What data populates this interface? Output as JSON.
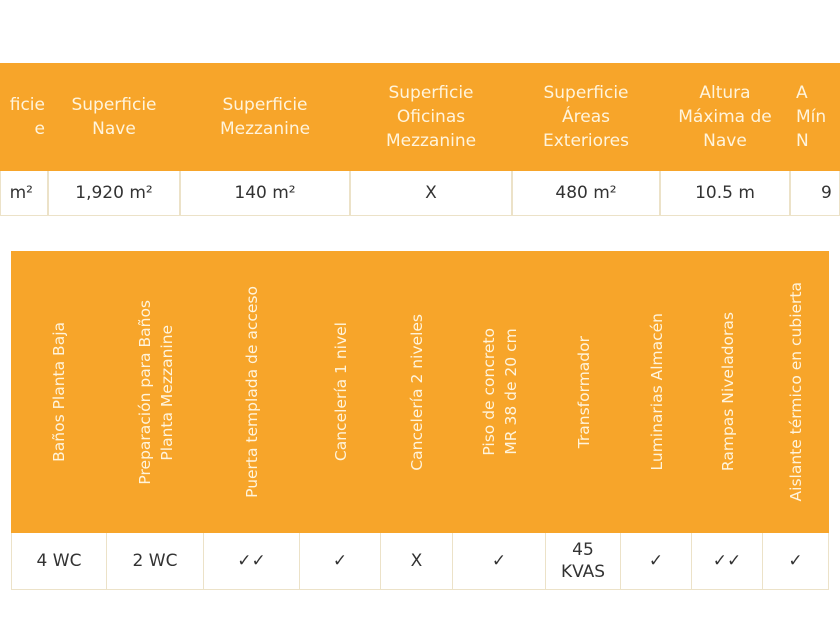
{
  "table1": {
    "headers": [
      "ficie\ne",
      "Superficie\nNave",
      "Superficie\nMezzanine",
      "Superficie\nOficinas\nMezzanine",
      "Superficie\nÁreas\nExteriores",
      "Altura\nMáxima de\nNave",
      "A\nMín\nN"
    ],
    "values": [
      "m²",
      "1,920 m²",
      "140 m²",
      "X",
      "480 m²",
      "10.5 m",
      "9"
    ]
  },
  "table2": {
    "headers": [
      "Baños Planta Baja",
      "Preparación para Baños\nPlanta Mezzanine",
      "Puerta templada de acceso",
      "Cancelería 1 nivel",
      "Cancelería 2 niveles",
      "Piso de concreto\nMR 38 de 20 cm",
      "Transformador",
      "Luminarias Almacén",
      "Rampas Niveladoras",
      "Aislante térmico en cubierta"
    ],
    "values": [
      "4 WC",
      "2 WC",
      "✓✓",
      "✓",
      "X",
      "✓",
      "45\nKVAS",
      "✓",
      "✓✓",
      "✓"
    ]
  },
  "colors": {
    "header_bg": "#f7a52a",
    "header_text": "#fff4dc",
    "body_text": "#333333"
  }
}
